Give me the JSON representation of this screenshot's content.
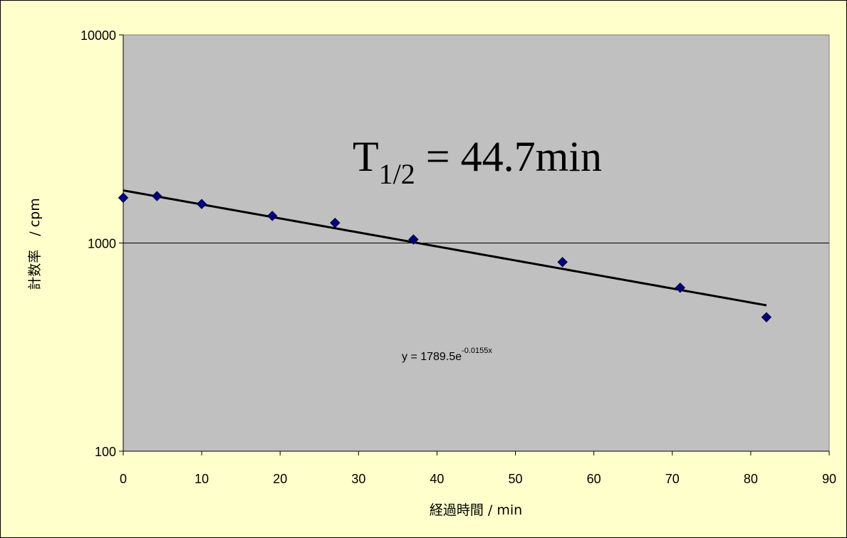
{
  "chart_data": {
    "type": "scatter",
    "x_scale": "linear",
    "y_scale": "log",
    "xlim": [
      0,
      90
    ],
    "ylim": [
      100,
      10000
    ],
    "x_ticks": [
      "0",
      "10",
      "20",
      "30",
      "40",
      "50",
      "60",
      "70",
      "80",
      "90"
    ],
    "y_ticks": [
      "100",
      "1000",
      "10000"
    ],
    "xlabel": "経過時間 / min",
    "ylabel": "計数率　/ cpm",
    "annotation": {
      "main": "T",
      "sub": "1/2",
      "rest": " = 44.7min"
    },
    "equation": {
      "base": "y = 1789.5e",
      "exponent": "-0.0155x"
    },
    "series": [
      {
        "type": "scatter",
        "marker": "diamond",
        "color": "#000080",
        "x": [
          0,
          4.3,
          10,
          19,
          27,
          37,
          56,
          71,
          82
        ],
        "y": [
          1650,
          1680,
          1540,
          1350,
          1250,
          1040,
          810,
          610,
          440
        ]
      },
      {
        "type": "trendline",
        "model": "exponential",
        "a": 1789.5,
        "b": -0.0155,
        "x_range": [
          0,
          82
        ],
        "color": "#000000"
      }
    ],
    "plot_background": "#c0c0c0",
    "chart_background": "#ffffcc",
    "grid": {
      "y_major": true,
      "x_major": false
    }
  }
}
